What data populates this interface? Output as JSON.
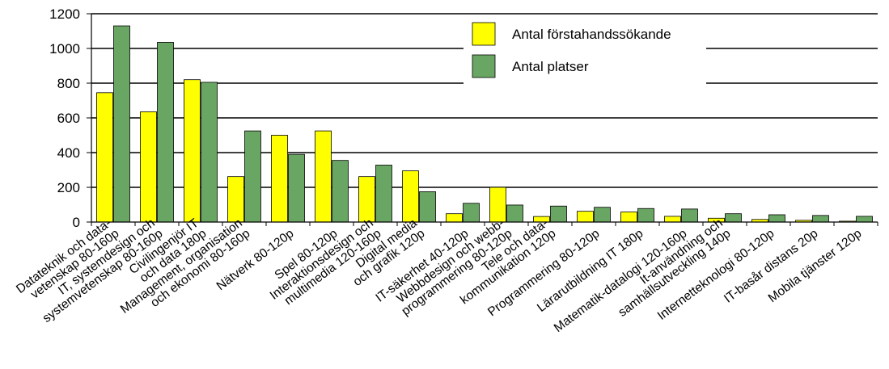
{
  "chart_data": {
    "type": "bar",
    "title": "",
    "xlabel": "",
    "ylabel": "",
    "ylim": [
      0,
      1200
    ],
    "yticks": [
      0,
      200,
      400,
      600,
      800,
      1000,
      1200
    ],
    "grid": true,
    "legend_position": "top-right",
    "categories": [
      [
        "Datateknik och data-",
        "vetenskap 80-160p"
      ],
      [
        "IT, systemdesign och",
        "systemvetenskap 80-160p"
      ],
      [
        "Civilingenjör IT",
        "och data 180p"
      ],
      [
        "Management, organisation",
        "och ekonomi 80-160p"
      ],
      [
        "Nätverk 80-120p"
      ],
      [
        "Spel 80-120p"
      ],
      [
        "Interaktionsdesign och",
        "multimedia 120-160p"
      ],
      [
        "Digital media",
        "och grafik 120p"
      ],
      [
        "IT-säkerhet 40-120p"
      ],
      [
        "Webbdesign och webb-",
        "programmering 80-120p"
      ],
      [
        "Tele och data-",
        "kommunikation 120p"
      ],
      [
        "Programmering 80-120p"
      ],
      [
        "Lärarutbildning IT 180p"
      ],
      [
        "Matematik-datalogi 120-160p"
      ],
      [
        "It-användning och",
        "samhällsutveckling 140p"
      ],
      [
        "Internetteknologi 80-120p"
      ],
      [
        "IT-basår distans 20p"
      ],
      [
        "Mobila tjänster 120p"
      ]
    ],
    "series": [
      {
        "name": "Antal förstahandssökande",
        "color": "#ffff00",
        "values": [
          745,
          635,
          820,
          262,
          500,
          525,
          262,
          295,
          48,
          200,
          32,
          62,
          58,
          33,
          22,
          15,
          10,
          5
        ]
      },
      {
        "name": "Antal platser",
        "color": "#6aa663",
        "values": [
          1130,
          1035,
          805,
          525,
          390,
          355,
          328,
          175,
          108,
          98,
          92,
          85,
          78,
          75,
          48,
          42,
          38,
          33
        ]
      }
    ]
  }
}
